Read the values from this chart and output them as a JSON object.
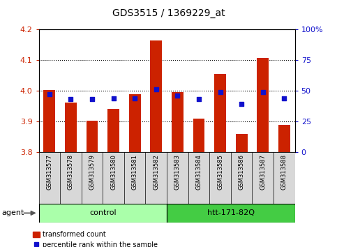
{
  "title": "GDS3515 / 1369229_at",
  "samples": [
    "GSM313577",
    "GSM313578",
    "GSM313579",
    "GSM313580",
    "GSM313581",
    "GSM313582",
    "GSM313583",
    "GSM313584",
    "GSM313585",
    "GSM313586",
    "GSM313587",
    "GSM313588"
  ],
  "red_values": [
    4.002,
    3.962,
    3.902,
    3.942,
    3.988,
    4.165,
    3.995,
    3.908,
    4.055,
    3.858,
    4.108,
    3.888
  ],
  "blue_values": [
    47,
    43,
    43,
    44,
    44,
    51,
    46,
    43,
    49,
    39,
    49,
    44
  ],
  "ylim_left": [
    3.8,
    4.2
  ],
  "ylim_right": [
    0,
    100
  ],
  "yticks_left": [
    3.8,
    3.9,
    4.0,
    4.1,
    4.2
  ],
  "yticks_right": [
    0,
    25,
    50,
    75,
    100
  ],
  "ytick_labels_right": [
    "0",
    "25",
    "50",
    "75",
    "100%"
  ],
  "groups": [
    {
      "label": "control",
      "start": 0,
      "end": 5,
      "color": "#aaffaa"
    },
    {
      "label": "htt-171-82Q",
      "start": 6,
      "end": 11,
      "color": "#44cc44"
    }
  ],
  "agent_label": "agent",
  "bar_color": "#cc2200",
  "dot_color": "#1111cc",
  "bar_baseline": 3.8,
  "tick_label_color_left": "#cc2200",
  "tick_label_color_right": "#1111cc",
  "plot_bg": "#ffffff",
  "xtick_bg": "#d8d8d8"
}
